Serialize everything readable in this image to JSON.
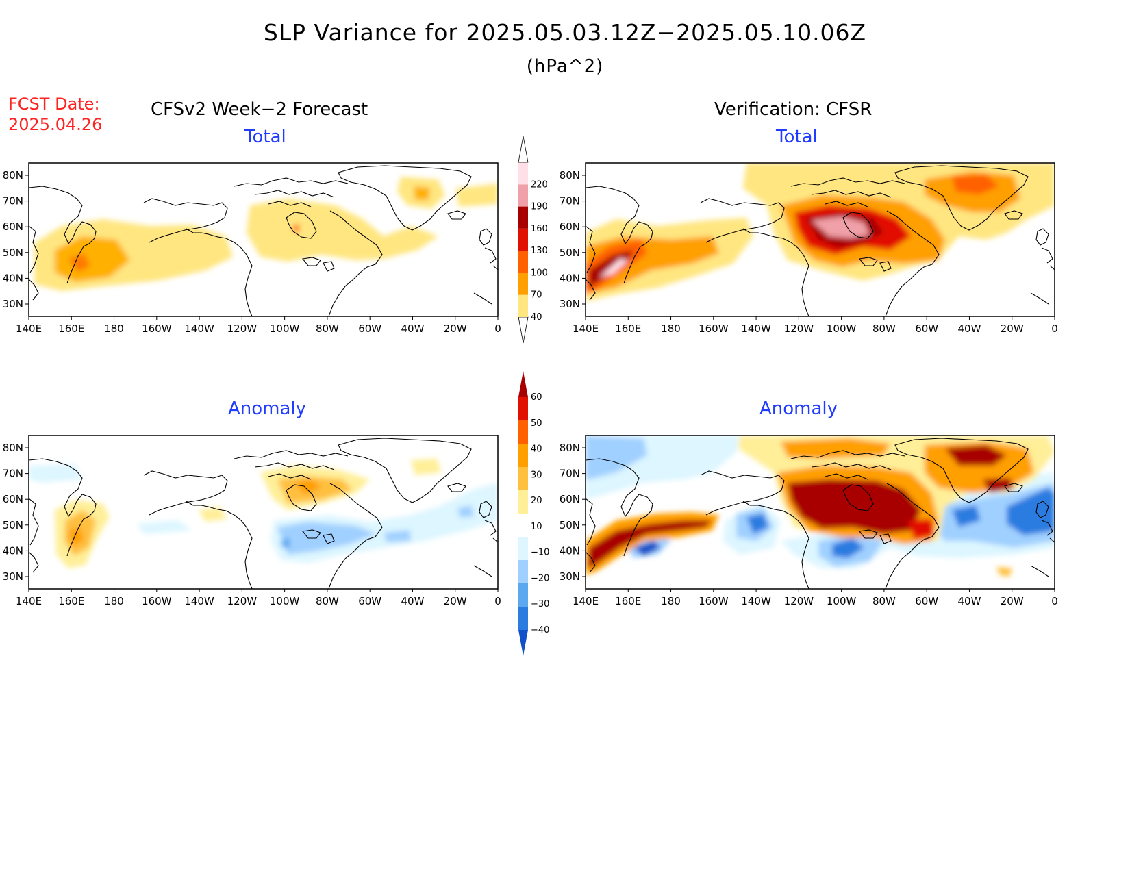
{
  "title": "SLP Variance for 2025.05.03.12Z−2025.05.10.06Z",
  "units": "(hPa^2)",
  "fcst_label": "FCST Date:",
  "fcst_date": "2025.04.26",
  "left_column_title": "CFSv2 Week−2 Forecast",
  "right_column_title": "Verification: CFSR",
  "panels": {
    "top_left": {
      "subtitle": "Total"
    },
    "top_right": {
      "subtitle": "Total"
    },
    "bottom_left": {
      "subtitle": "Anomaly"
    },
    "bottom_right": {
      "subtitle": "Anomaly"
    }
  },
  "lat_labels": [
    "80N",
    "70N",
    "60N",
    "50N",
    "40N",
    "30N"
  ],
  "lon_labels": [
    "140E",
    "160E",
    "180",
    "160W",
    "140W",
    "120W",
    "100W",
    "80W",
    "60W",
    "40W",
    "20W",
    "0"
  ],
  "colorbar_total": {
    "levels": [
      "40",
      "70",
      "100",
      "130",
      "160",
      "190",
      "220"
    ],
    "colors": [
      "#ffe680",
      "#ff9f00",
      "#ff6000",
      "#e21000",
      "#a80000",
      "#f0a0a8",
      "#ffe0e8"
    ]
  },
  "colorbar_anomaly": {
    "levels": [
      "60",
      "50",
      "40",
      "30",
      "20",
      "10",
      "−10",
      "−20",
      "−30",
      "−40"
    ],
    "colors": [
      "#a80000",
      "#e21000",
      "#ff6000",
      "#ff9f00",
      "#ffc040",
      "#ffef99",
      "#ffffff",
      "#ddf6ff",
      "#a0d0ff",
      "#5ca8f0",
      "#2a7ce0",
      "#1050c8"
    ]
  }
}
